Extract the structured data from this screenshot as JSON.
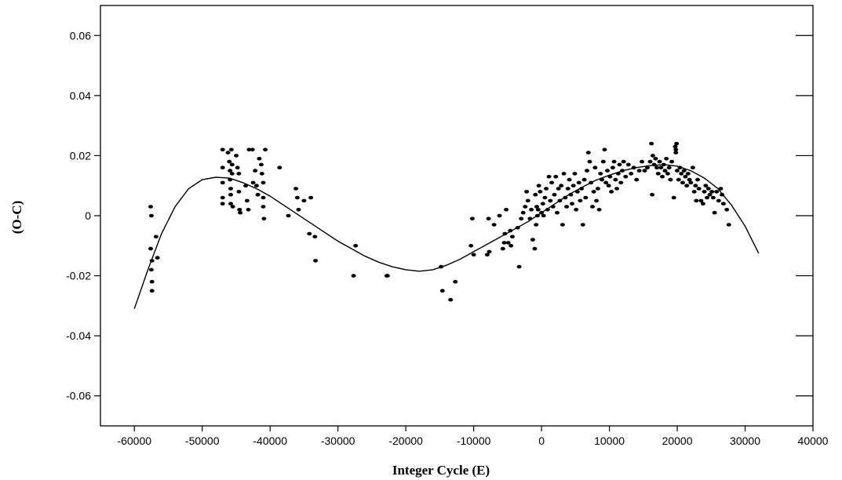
{
  "chart_data": {
    "type": "scatter",
    "title": "",
    "xlabel": "Integer Cycle (E)",
    "ylabel": "(O-C)",
    "xlim": [
      -65000,
      40000
    ],
    "ylim": [
      -0.07,
      0.07
    ],
    "grid": false,
    "x_ticks": [
      -60000,
      -50000,
      -40000,
      -30000,
      -20000,
      -10000,
      0,
      10000,
      20000,
      30000,
      40000
    ],
    "x_tick_labels": [
      "-60000",
      "-50000",
      "-40000",
      "-30000",
      "-20000",
      "-10000",
      "0",
      "10000",
      "20000",
      "30000",
      "40000"
    ],
    "y_ticks": [
      0.06,
      0.04,
      0.02,
      0,
      -0.02,
      -0.04,
      -0.06
    ],
    "y_tick_labels": [
      "0.06",
      "0.04",
      "0.02",
      "0",
      "-0.02",
      "-0.04",
      "-0.06"
    ],
    "series": [
      {
        "kind": "scatter",
        "points": [
          [
            -57600,
            0.003
          ],
          [
            -57500,
            0.0
          ],
          [
            -57600,
            -0.011
          ],
          [
            -57400,
            -0.015
          ],
          [
            -57500,
            -0.018
          ],
          [
            -57400,
            -0.022
          ],
          [
            -57400,
            -0.025
          ],
          [
            -56800,
            -0.007
          ],
          [
            -56600,
            -0.014
          ],
          [
            -47000,
            0.022
          ],
          [
            -47000,
            0.016
          ],
          [
            -47000,
            0.011
          ],
          [
            -47000,
            0.006
          ],
          [
            -47000,
            0.004
          ],
          [
            -46200,
            0.021
          ],
          [
            -46000,
            0.018
          ],
          [
            -45900,
            0.015
          ],
          [
            -45900,
            0.012
          ],
          [
            -45800,
            0.009
          ],
          [
            -45800,
            0.007
          ],
          [
            -45800,
            0.004
          ],
          [
            -45700,
            0.022
          ],
          [
            -45600,
            0.017
          ],
          [
            -45600,
            0.014
          ],
          [
            -45500,
            0.003
          ],
          [
            -45000,
            0.02
          ],
          [
            -44800,
            0.016
          ],
          [
            -44600,
            0.014
          ],
          [
            -44600,
            0.008
          ],
          [
            -44500,
            0.002
          ],
          [
            -44400,
            0.001
          ],
          [
            -43600,
            0.01
          ],
          [
            -43400,
            0.005
          ],
          [
            -43200,
            0.002
          ],
          [
            -43100,
            0.022
          ],
          [
            -42600,
            0.022
          ],
          [
            -42500,
            0.011
          ],
          [
            -42200,
            0.015
          ],
          [
            -42000,
            0.01
          ],
          [
            -41800,
            0.007
          ],
          [
            -41600,
            0.019
          ],
          [
            -41300,
            0.017
          ],
          [
            -41200,
            0.014
          ],
          [
            -41000,
            0.011
          ],
          [
            -41000,
            0.006
          ],
          [
            -41000,
            0.003
          ],
          [
            -40900,
            -0.001
          ],
          [
            -40700,
            0.022
          ],
          [
            -38600,
            0.016
          ],
          [
            -37300,
            0.0
          ],
          [
            -36200,
            0.009
          ],
          [
            -36000,
            0.006
          ],
          [
            -35800,
            0.002
          ],
          [
            -35000,
            0.005
          ],
          [
            -34000,
            0.006
          ],
          [
            -34200,
            -0.006
          ],
          [
            -33400,
            -0.007
          ],
          [
            -33300,
            -0.015
          ],
          [
            -27700,
            -0.02
          ],
          [
            -27400,
            -0.01
          ],
          [
            -22800,
            -0.02
          ],
          [
            -22700,
            -0.02
          ],
          [
            -14800,
            -0.017
          ],
          [
            -14600,
            -0.025
          ],
          [
            -13400,
            -0.028
          ],
          [
            -12700,
            -0.022
          ],
          [
            -10200,
            -0.001
          ],
          [
            -10400,
            -0.01
          ],
          [
            -10000,
            -0.013
          ],
          [
            -8000,
            -0.013
          ],
          [
            -7700,
            -0.012
          ],
          [
            -7800,
            -0.001
          ],
          [
            -7000,
            -0.003
          ],
          [
            -6200,
            0.0
          ],
          [
            -5700,
            -0.011
          ],
          [
            -5500,
            -0.009
          ],
          [
            -5400,
            -0.006
          ],
          [
            -5200,
            0.002
          ],
          [
            -4900,
            -0.009
          ],
          [
            -4600,
            -0.005
          ],
          [
            -4500,
            -0.01
          ],
          [
            -4300,
            -0.007
          ],
          [
            -3500,
            -0.004
          ],
          [
            -3300,
            -0.017
          ],
          [
            -3000,
            -0.001
          ],
          [
            -2700,
            0.001
          ],
          [
            -2400,
            0.003
          ],
          [
            -2200,
            0.008
          ],
          [
            -2000,
            0.005
          ],
          [
            -1700,
            -0.001
          ],
          [
            -1500,
            0.002
          ],
          [
            -1300,
            -0.008
          ],
          [
            -1000,
            -0.011
          ],
          [
            -900,
            0.007
          ],
          [
            -800,
            -0.003
          ],
          [
            -700,
            0.003
          ],
          [
            -600,
            0.0
          ],
          [
            -500,
            0.002
          ],
          [
            -400,
            0.01
          ],
          [
            -200,
            0.008
          ],
          [
            0,
            0.001
          ],
          [
            200,
            0.004
          ],
          [
            300,
            0.0
          ],
          [
            500,
            0.006
          ],
          [
            700,
            0.009
          ],
          [
            900,
            0.002
          ],
          [
            1100,
            0.013
          ],
          [
            1300,
            0.005
          ],
          [
            1500,
            0.011
          ],
          [
            1700,
            0.003
          ],
          [
            1900,
            0.007
          ],
          [
            2100,
            0.013
          ],
          [
            2300,
            0.001
          ],
          [
            2500,
            0.009
          ],
          [
            2700,
            0.005
          ],
          [
            2900,
            0.01
          ],
          [
            3100,
            -0.003
          ],
          [
            3300,
            0.014
          ],
          [
            3500,
            0.006
          ],
          [
            3700,
            0.003
          ],
          [
            3900,
            0.009
          ],
          [
            4100,
            0.012
          ],
          [
            4300,
            0.007
          ],
          [
            4500,
            0.004
          ],
          [
            4700,
            0.01
          ],
          [
            4900,
            0.014
          ],
          [
            5100,
            0.002
          ],
          [
            5300,
            0.008
          ],
          [
            5500,
            0.011
          ],
          [
            5700,
            0.005
          ],
          [
            5900,
            0.009
          ],
          [
            6100,
            -0.003
          ],
          [
            6300,
            0.012
          ],
          [
            6500,
            0.006
          ],
          [
            6700,
            0.015
          ],
          [
            6900,
            0.021
          ],
          [
            7100,
            0.018
          ],
          [
            7300,
            0.011
          ],
          [
            7500,
            0.003
          ],
          [
            7700,
            0.008
          ],
          [
            7900,
            0.016
          ],
          [
            8100,
            0.005
          ],
          [
            8300,
            0.009
          ],
          [
            8500,
            0.002
          ],
          [
            8700,
            0.014
          ],
          [
            8900,
            0.012
          ],
          [
            9100,
            0.018
          ],
          [
            9300,
            0.022
          ],
          [
            9500,
            0.011
          ],
          [
            9700,
            0.015
          ],
          [
            9900,
            0.01
          ],
          [
            10100,
            0.013
          ],
          [
            10300,
            0.008
          ],
          [
            10500,
            0.016
          ],
          [
            10700,
            0.018
          ],
          [
            10900,
            0.012
          ],
          [
            11100,
            0.009
          ],
          [
            11300,
            0.014
          ],
          [
            11500,
            0.017
          ],
          [
            11700,
            0.011
          ],
          [
            11900,
            0.015
          ],
          [
            12100,
            0.018
          ],
          [
            12400,
            0.013
          ],
          [
            12800,
            0.017
          ],
          [
            13200,
            0.014
          ],
          [
            13600,
            0.016
          ],
          [
            14000,
            0.012
          ],
          [
            14400,
            0.015
          ],
          [
            14800,
            0.018
          ],
          [
            15200,
            0.015
          ],
          [
            15600,
            0.016
          ],
          [
            16000,
            0.018
          ],
          [
            16200,
            0.024
          ],
          [
            16300,
            0.007
          ],
          [
            16400,
            0.02
          ],
          [
            16600,
            0.017
          ],
          [
            16800,
            0.019
          ],
          [
            17000,
            0.016
          ],
          [
            17200,
            0.014
          ],
          [
            17400,
            0.018
          ],
          [
            17600,
            0.016
          ],
          [
            17800,
            0.013
          ],
          [
            18000,
            0.017
          ],
          [
            18200,
            0.015
          ],
          [
            18400,
            0.019
          ],
          [
            18600,
            0.014
          ],
          [
            18800,
            0.016
          ],
          [
            19000,
            0.012
          ],
          [
            19200,
            0.018
          ],
          [
            19500,
            0.006
          ],
          [
            19700,
            0.023
          ],
          [
            19800,
            0.022
          ],
          [
            19800,
            0.021
          ],
          [
            19900,
            0.024
          ],
          [
            20000,
            0.015
          ],
          [
            20200,
            0.012
          ],
          [
            20400,
            0.016
          ],
          [
            20600,
            0.014
          ],
          [
            20800,
            0.011
          ],
          [
            21000,
            0.015
          ],
          [
            21200,
            0.013
          ],
          [
            21400,
            0.01
          ],
          [
            21600,
            0.014
          ],
          [
            21800,
            0.012
          ],
          [
            22000,
            0.011
          ],
          [
            22300,
            0.016
          ],
          [
            22500,
            0.008
          ],
          [
            22700,
            0.01
          ],
          [
            22800,
            0.005
          ],
          [
            23000,
            0.012
          ],
          [
            23200,
            0.009
          ],
          [
            23500,
            0.005
          ],
          [
            23800,
            0.004
          ],
          [
            24000,
            0.008
          ],
          [
            24200,
            0.01
          ],
          [
            24400,
            0.006
          ],
          [
            24600,
            0.009
          ],
          [
            24800,
            0.007
          ],
          [
            25100,
            0.008
          ],
          [
            25300,
            0.006
          ],
          [
            25500,
            0.001
          ],
          [
            25800,
            0.008
          ],
          [
            26100,
            0.005
          ],
          [
            26400,
            0.009
          ],
          [
            26600,
            0.007
          ],
          [
            26800,
            0.004
          ],
          [
            27300,
            0.002
          ],
          [
            27600,
            -0.003
          ]
        ]
      },
      {
        "kind": "line",
        "x": [
          -60000,
          -58000,
          -56000,
          -54000,
          -52000,
          -50000,
          -48000,
          -46000,
          -44000,
          -42000,
          -40000,
          -38000,
          -36000,
          -34000,
          -32000,
          -30000,
          -28000,
          -26000,
          -24000,
          -22000,
          -20000,
          -18000,
          -16000,
          -14000,
          -12000,
          -10000,
          -8000,
          -6000,
          -4000,
          -2000,
          0,
          2000,
          4000,
          6000,
          8000,
          10000,
          12000,
          14000,
          16000,
          18000,
          20000,
          22000,
          24000,
          26000,
          28000,
          30000,
          32000
        ],
        "y": [
          -0.031,
          -0.018,
          -0.006,
          0.003,
          0.009,
          0.012,
          0.0128,
          0.0125,
          0.011,
          0.009,
          0.0065,
          0.0035,
          0.0005,
          -0.0025,
          -0.0055,
          -0.0085,
          -0.011,
          -0.0135,
          -0.0155,
          -0.017,
          -0.018,
          -0.0185,
          -0.018,
          -0.0165,
          -0.0145,
          -0.012,
          -0.0095,
          -0.007,
          -0.0045,
          -0.002,
          0.001,
          0.004,
          0.007,
          0.0095,
          0.0118,
          0.0135,
          0.015,
          0.016,
          0.0167,
          0.017,
          0.0165,
          0.015,
          0.0125,
          0.009,
          0.0035,
          -0.0035,
          -0.0125
        ]
      }
    ]
  }
}
